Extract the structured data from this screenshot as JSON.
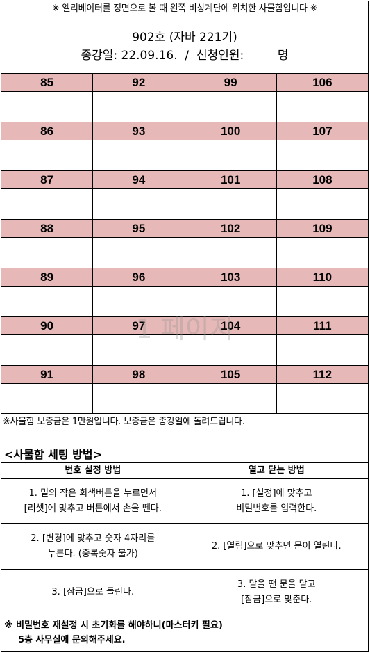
{
  "header": {
    "notice": "※ 엘리베이터를 정면으로 볼 때 왼쪽 비상계단에 위치한 사물함입니다 ※",
    "room": "902호 (자바 221기)",
    "end_date_line": "종강일: 22.09.16.  /  신청인원:         명"
  },
  "locker_rows": [
    [
      "85",
      "92",
      "99",
      "106"
    ],
    [
      "86",
      "93",
      "100",
      "107"
    ],
    [
      "87",
      "94",
      "101",
      "108"
    ],
    [
      "88",
      "95",
      "102",
      "109"
    ],
    [
      "89",
      "96",
      "103",
      "110"
    ],
    [
      "90",
      "97",
      "104",
      "111"
    ],
    [
      "91",
      "98",
      "105",
      "112"
    ]
  ],
  "watermark": "1 페이지",
  "deposit_note": "※사물함 보증금은 1만원입니다. 보증금은 종강일에 돌려드립니다.",
  "setting": {
    "title": "<사물함 세팅 방법>",
    "col_left": "번호 설정 방법",
    "col_right": "열고 닫는 방법",
    "rows": [
      {
        "left": [
          "1. 밑의 작은 회색버튼을 누르면서",
          "[리셋]에 맞추고 버튼에서 손을 뗀다."
        ],
        "right": [
          "1. [설정]에 맞추고",
          "비밀번호를 입력한다."
        ]
      },
      {
        "left": [
          "2. [변경]에 맞추고 숫자 4자리를",
          "누른다. (중복숫자 불가)"
        ],
        "right": [
          "2. [열림]으로 맞추면 문이 열린다."
        ]
      },
      {
        "left": [
          "3. [잠금]으로 돌린다."
        ],
        "right": [
          "3. 닫을 땐 문을 닫고",
          "[잠금]으로 맞춘다."
        ]
      }
    ]
  },
  "bottom_note": {
    "line1": "※ 비밀번호 재설정 시 초기화를 해야하니(마스터키 필요)",
    "line2": "5층 사무실에 문의해주세요."
  }
}
